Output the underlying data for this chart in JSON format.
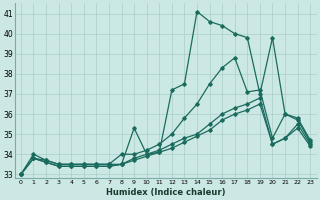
{
  "xlabel": "Humidex (Indice chaleur)",
  "x_ticks": [
    0,
    1,
    2,
    3,
    4,
    5,
    6,
    7,
    8,
    9,
    10,
    11,
    12,
    13,
    14,
    15,
    16,
    17,
    18,
    19,
    20,
    21,
    22,
    23
  ],
  "xlim": [
    -0.5,
    23.5
  ],
  "ylim": [
    32.8,
    41.5
  ],
  "y_ticks": [
    33,
    34,
    35,
    36,
    37,
    38,
    39,
    40,
    41
  ],
  "bg_color": "#cce8e4",
  "grid_color": "#aacdc9",
  "line_color": "#1a6b5e",
  "series1": [
    33,
    34,
    33.7,
    33.5,
    33.5,
    33.5,
    33.5,
    33.5,
    33.5,
    35.3,
    34.0,
    34.1,
    37.2,
    37.5,
    41.1,
    40.6,
    40.4,
    40.0,
    39.8,
    37.0,
    39.8,
    36.0,
    35.8,
    34.7
  ],
  "series2": [
    33,
    33.8,
    33.7,
    33.5,
    33.5,
    33.5,
    33.5,
    33.5,
    34.0,
    34.0,
    34.2,
    34.5,
    35.0,
    35.8,
    36.5,
    37.5,
    38.3,
    38.8,
    37.1,
    37.2,
    34.8,
    36.0,
    35.7,
    34.6
  ],
  "series3": [
    33,
    33.8,
    33.6,
    33.4,
    33.4,
    33.4,
    33.4,
    33.4,
    33.5,
    33.8,
    34.0,
    34.2,
    34.5,
    34.8,
    35.0,
    35.5,
    36.0,
    36.3,
    36.5,
    36.8,
    34.5,
    34.8,
    35.5,
    34.5
  ],
  "series4": [
    33,
    33.8,
    33.6,
    33.4,
    33.4,
    33.4,
    33.4,
    33.4,
    33.5,
    33.7,
    33.9,
    34.1,
    34.3,
    34.6,
    34.9,
    35.2,
    35.7,
    36.0,
    36.2,
    36.5,
    34.5,
    34.8,
    35.3,
    34.4
  ]
}
